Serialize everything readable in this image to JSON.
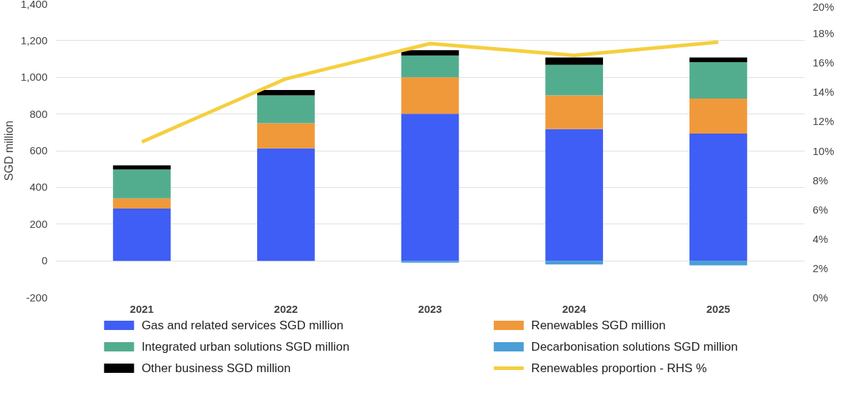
{
  "chart_data": {
    "type": "bar",
    "stacked": true,
    "ylabel": "SGD million",
    "categories": [
      "2021",
      "2022",
      "2023",
      "2024",
      "2025"
    ],
    "series": [
      {
        "name": "Gas and related services SGD million",
        "color": "#3f5ef5",
        "values": [
          285,
          613,
          801,
          718,
          693
        ]
      },
      {
        "name": "Renewables SGD million",
        "color": "#f0993a",
        "values": [
          55,
          137,
          199,
          184,
          191
        ]
      },
      {
        "name": "Integrated urban solutions SGD million",
        "color": "#52ad8f",
        "values": [
          158,
          152,
          119,
          166,
          199
        ]
      },
      {
        "name": "Decarbonisation solutions SGD million",
        "color": "#4a9fd6",
        "values": [
          0,
          0,
          -10,
          -20,
          -25
        ]
      },
      {
        "name": "Other business SGD million",
        "color": "#000000",
        "values": [
          22,
          29,
          29,
          40,
          25
        ]
      },
      {
        "name": "Renewables proportion - RHS %",
        "color": "#f5cf3f",
        "type": "line",
        "axis": "y2",
        "values": [
          10.6,
          14.9,
          17.3,
          16.5,
          17.4
        ]
      }
    ],
    "ylim": [
      -200,
      1400
    ],
    "yticks": [
      {
        "value": -200,
        "label": "-200"
      },
      0,
      200,
      400,
      600,
      800,
      {
        "value": 1000,
        "label": "1,000"
      },
      {
        "value": 1200,
        "label": "1,200"
      },
      {
        "value": 1400,
        "label": "1,400"
      }
    ],
    "y2lim": [
      0,
      20
    ],
    "y2ticks": [
      {
        "value": 0,
        "label": "0%"
      },
      {
        "value": 2,
        "label": "2%"
      },
      {
        "value": 4,
        "label": "4%"
      },
      {
        "value": 6,
        "label": "6%"
      },
      {
        "value": 8,
        "label": "8%"
      },
      {
        "value": 10,
        "label": "10%"
      },
      {
        "value": 12,
        "label": "12%"
      },
      {
        "value": 14,
        "label": "14%"
      },
      {
        "value": 16,
        "label": "16%"
      },
      {
        "value": 18,
        "label": "18%"
      },
      {
        "value": 20,
        "label": "20%"
      }
    ],
    "grid": "y",
    "legend": "bottom"
  }
}
